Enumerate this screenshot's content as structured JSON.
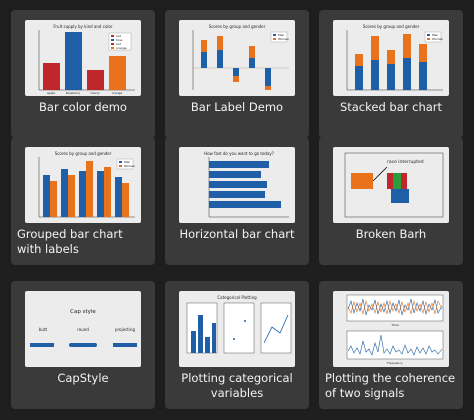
{
  "gallery": {
    "cards": [
      {
        "title": "Bar color demo",
        "thumb_title": "Fruit supply by kind and color",
        "legend": [
          "red",
          "blue",
          "red",
          "orange"
        ],
        "categories": [
          "apple",
          "blueberry",
          "cherry",
          "orange"
        ]
      },
      {
        "title": "Bar Label Demo",
        "thumb_title": "Scores by group and gender",
        "legend": [
          "Men",
          "Women"
        ]
      },
      {
        "title": "Stacked bar chart",
        "thumb_title": "Scores by group and gender",
        "legend": [
          "Men",
          "Women"
        ]
      },
      {
        "title": "Grouped bar chart with labels",
        "thumb_title": "Scores by group and gender",
        "legend": [
          "Men",
          "Women"
        ]
      },
      {
        "title": "Horizontal bar chart",
        "thumb_title": "How fast do you want to go today?"
      },
      {
        "title": "Broken Barh",
        "thumb_annotation": "race interrupted"
      },
      {
        "title": "CapStyle",
        "thumb_title": "Cap style",
        "caps": [
          "butt",
          "round",
          "projecting"
        ]
      },
      {
        "title": "Plotting categorical variables",
        "thumb_title": "Categorical Plotting"
      },
      {
        "title": "Plotting the coherence of two signals",
        "thumb_xlabel": "Time",
        "thumb_xlabel2": "Frequency"
      }
    ]
  },
  "colors": {
    "blue": "#1f5fa8",
    "orange": "#e8731c",
    "red": "#c0272d",
    "page_bg": "#1e1e1e",
    "card_bg": "#3a3a3a"
  }
}
